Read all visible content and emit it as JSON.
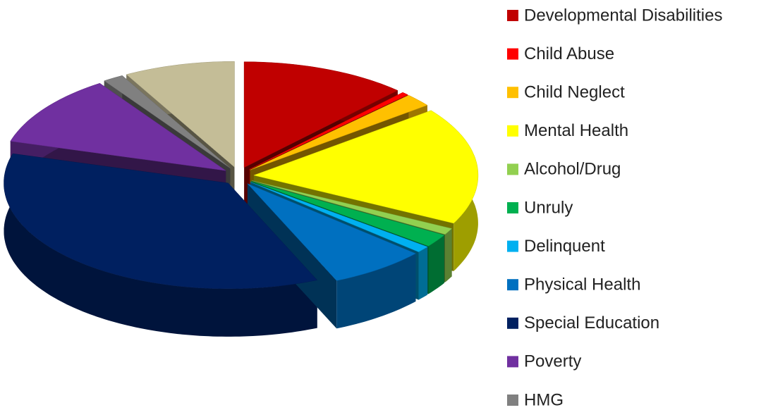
{
  "chart_data": {
    "type": "pie",
    "categories": [
      "Developmental Disabilities",
      "Child Abuse",
      "Child Neglect",
      "Mental Health",
      "Alcohol/Drug",
      "Unruly",
      "Delinquent",
      "Physical Health",
      "Special Education",
      "Poverty",
      "HMG",
      null
    ],
    "values": [
      12,
      0.5,
      2,
      18,
      1,
      2,
      1,
      7,
      36,
      11,
      1.5,
      8
    ],
    "colors": [
      "#c00000",
      "#ff0000",
      "#ffc000",
      "#ffff00",
      "#92d050",
      "#00b050",
      "#00b0f0",
      "#0070c0",
      "#002060",
      "#7030a0",
      "#808080",
      "#c4bd97"
    ],
    "exploded": true,
    "three_d": true,
    "legend": "right"
  }
}
